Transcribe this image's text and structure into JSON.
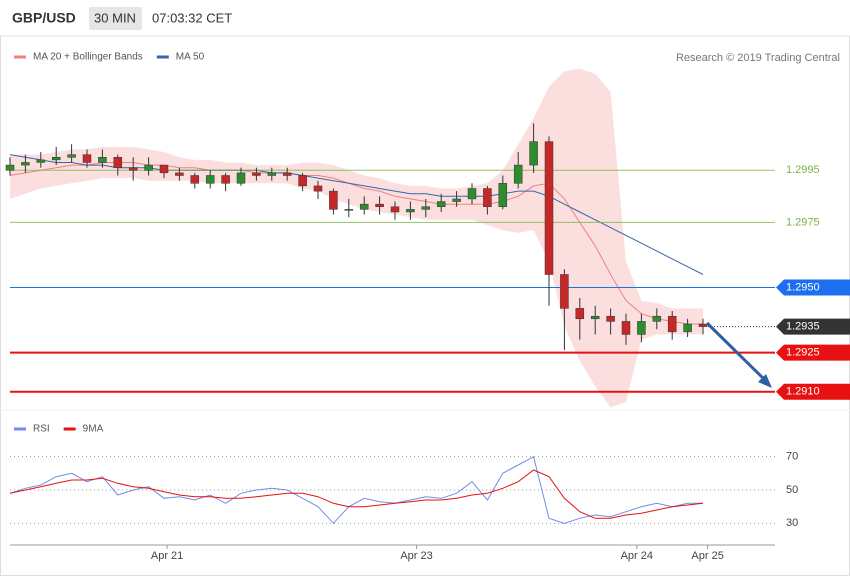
{
  "header": {
    "symbol": "GBP/USD",
    "interval": "30 MIN",
    "time": "07:03:32 CET"
  },
  "copyright": "Research © 2019 Trading Central",
  "chart_data": [
    {
      "type": "candlestick",
      "xlim": [
        0,
        50
      ],
      "ylim": [
        1.2903,
        1.3045
      ],
      "open": [
        1.2995,
        1.2997,
        1.2998,
        1.2999,
        1.3,
        1.3001,
        1.2998,
        1.3,
        1.2996,
        1.2995,
        1.2997,
        1.2994,
        1.2993,
        1.299,
        1.2993,
        1.299,
        1.2994,
        1.2993,
        1.2994,
        1.2993,
        1.2989,
        1.2987,
        1.298,
        1.298,
        1.2982,
        1.2981,
        1.2979,
        1.298,
        1.2981,
        1.2983,
        1.2984,
        1.2988,
        1.2981,
        1.299,
        1.2997,
        1.3006,
        1.2955,
        1.2942,
        1.2938,
        1.2939,
        1.2937,
        1.2932,
        1.2937,
        1.2939,
        1.2933,
        1.2936
      ],
      "high": [
        1.3,
        1.3001,
        1.3002,
        1.3004,
        1.3005,
        1.3003,
        1.3003,
        1.3001,
        1.3,
        1.3,
        1.2996,
        1.2996,
        1.2994,
        1.2995,
        1.2994,
        1.2996,
        1.2996,
        1.2996,
        1.2996,
        1.2994,
        1.2991,
        1.2988,
        1.2984,
        1.2985,
        1.2985,
        1.2983,
        1.2983,
        1.2984,
        1.2986,
        1.2987,
        1.299,
        1.2989,
        1.2993,
        1.3002,
        1.3013,
        1.3008,
        1.2957,
        1.2946,
        1.2943,
        1.2942,
        1.294,
        1.294,
        1.2942,
        1.2941,
        1.2938,
        1.2938
      ],
      "low": [
        1.2993,
        1.2994,
        1.2996,
        1.2997,
        1.2998,
        1.2996,
        1.2996,
        1.2993,
        1.2991,
        1.2993,
        1.2992,
        1.2991,
        1.2988,
        1.2988,
        1.2987,
        1.2989,
        1.2991,
        1.2991,
        1.2991,
        1.2987,
        1.2984,
        1.2978,
        1.2977,
        1.2978,
        1.2978,
        1.2976,
        1.2976,
        1.2977,
        1.2979,
        1.2981,
        1.2982,
        1.2978,
        1.298,
        1.2988,
        1.2994,
        1.2943,
        1.2926,
        1.293,
        1.2932,
        1.2932,
        1.2928,
        1.2929,
        1.2934,
        1.293,
        1.2931,
        1.2932
      ],
      "close": [
        1.2997,
        1.2998,
        1.2999,
        1.3,
        1.3001,
        1.2998,
        1.3,
        1.2996,
        1.2995,
        1.2997,
        1.2994,
        1.2993,
        1.299,
        1.2993,
        1.299,
        1.2994,
        1.2993,
        1.2994,
        1.2993,
        1.2989,
        1.2987,
        1.298,
        1.298,
        1.2982,
        1.2981,
        1.2979,
        1.298,
        1.2981,
        1.2983,
        1.2984,
        1.2988,
        1.2981,
        1.299,
        1.2997,
        1.3006,
        1.2955,
        1.2942,
        1.2938,
        1.2939,
        1.2937,
        1.2932,
        1.2937,
        1.2939,
        1.2933,
        1.2936,
        1.2935
      ],
      "up_color": "#2e8b2e",
      "down_color": "#c62828",
      "band": {
        "name": "MA 20 + Bollinger Bands",
        "color": "#f08080",
        "upper": [
          1.3001,
          1.3001,
          1.3001,
          1.3002,
          1.3003,
          1.3003,
          1.3004,
          1.3004,
          1.3004,
          1.3003,
          1.3002,
          1.3,
          1.2999,
          1.2999,
          1.2998,
          1.2998,
          1.2997,
          1.2997,
          1.2997,
          1.2998,
          1.2998,
          1.2997,
          1.2995,
          1.2993,
          1.2992,
          1.299,
          1.2989,
          1.2989,
          1.2988,
          1.2988,
          1.2989,
          1.299,
          1.2995,
          1.3005,
          1.3015,
          1.3027,
          1.3033,
          1.3034,
          1.3032,
          1.3025,
          1.296,
          1.2945,
          1.2944,
          1.2942,
          1.2942,
          1.2942
        ],
        "middle": [
          1.2993,
          1.2994,
          1.2995,
          1.2996,
          1.2997,
          1.2997,
          1.2998,
          1.2998,
          1.2998,
          1.2997,
          1.2997,
          1.2996,
          1.2996,
          1.2995,
          1.2995,
          1.2995,
          1.2994,
          1.2994,
          1.2994,
          1.2993,
          1.2993,
          1.2992,
          1.299,
          1.2988,
          1.2987,
          1.2985,
          1.2984,
          1.2983,
          1.2982,
          1.2982,
          1.2982,
          1.2982,
          1.2983,
          1.2985,
          1.2989,
          1.299,
          1.2984,
          1.2975,
          1.2966,
          1.2955,
          1.2945,
          1.294,
          1.2938,
          1.2937,
          1.2936,
          1.2936
        ],
        "lower": [
          1.2984,
          1.2986,
          1.2988,
          1.2989,
          1.299,
          1.2991,
          1.2992,
          1.2992,
          1.2992,
          1.2991,
          1.2991,
          1.2991,
          1.2991,
          1.299,
          1.299,
          1.299,
          1.299,
          1.299,
          1.299,
          1.2988,
          1.2987,
          1.2984,
          1.2982,
          1.298,
          1.2979,
          1.2978,
          1.2977,
          1.2976,
          1.2976,
          1.2976,
          1.2976,
          1.2974,
          1.2972,
          1.2971,
          1.2972,
          1.296,
          1.2935,
          1.2922,
          1.2912,
          1.2904,
          1.2906,
          1.293,
          1.2932,
          1.2932,
          1.2932,
          1.2932
        ]
      },
      "series": [
        {
          "name": "MA 50",
          "color": "#3a64a8",
          "values": [
            1.3001,
            1.3,
            1.2999,
            1.2998,
            1.2998,
            1.2997,
            1.2997,
            1.2996,
            1.2996,
            1.2996,
            1.2995,
            1.2995,
            1.2995,
            1.2995,
            1.2995,
            1.2995,
            1.2995,
            1.2994,
            1.2994,
            1.2993,
            1.2992,
            1.2991,
            1.299,
            1.2989,
            1.2988,
            1.2987,
            1.2986,
            1.2986,
            1.2985,
            1.2985,
            1.2985,
            1.2985,
            1.2986,
            1.2987,
            1.2987,
            1.2985,
            1.2982,
            1.2979,
            1.2976,
            1.2973,
            1.297,
            1.2967,
            1.2964,
            1.2961,
            1.2958,
            1.2955
          ]
        }
      ],
      "levels": [
        {
          "value": 1.2995,
          "label": "1.2995",
          "color": "#7cb342",
          "style": "text"
        },
        {
          "value": 1.2975,
          "label": "1.2975",
          "color": "#7cb342",
          "style": "text"
        },
        {
          "value": 1.295,
          "label": "1.2950",
          "color": "#1e6ef0",
          "style": "badge"
        },
        {
          "value": 1.2935,
          "label": "1.2935",
          "color": "#333333",
          "style": "current"
        },
        {
          "value": 1.2925,
          "label": "1.2925",
          "color": "#e81010",
          "style": "badge"
        },
        {
          "value": 1.291,
          "label": "1.2910",
          "color": "#e81010",
          "style": "badge"
        }
      ]
    },
    {
      "type": "line",
      "xlim": [
        0,
        50
      ],
      "ylim": [
        17,
        98
      ],
      "yticks": [
        30,
        50,
        70
      ],
      "grid": true,
      "xticks": [
        {
          "value": 10.2,
          "label": "Apr 21"
        },
        {
          "value": 26.4,
          "label": "Apr 23"
        },
        {
          "value": 40.7,
          "label": "Apr 24"
        },
        {
          "value": 45.3,
          "label": "Apr 25"
        }
      ],
      "series": [
        {
          "name": "RSI",
          "color": "#6f8fe8",
          "values": [
            48,
            51,
            53,
            58,
            60,
            55,
            58,
            47,
            50,
            52,
            45,
            46,
            44,
            47,
            42,
            48,
            50,
            51,
            50,
            45,
            40,
            30,
            40,
            45,
            43,
            42,
            44,
            46,
            45,
            48,
            55,
            44,
            60,
            65,
            70,
            33,
            30,
            33,
            35,
            34,
            37,
            40,
            42,
            40,
            42,
            42
          ]
        },
        {
          "name": "9MA",
          "color": "#e81010",
          "values": [
            48,
            50,
            52,
            54,
            56,
            56,
            57,
            54,
            52,
            51,
            49,
            47,
            46,
            46,
            45,
            45,
            46,
            47,
            48,
            48,
            46,
            42,
            40,
            40,
            41,
            42,
            43,
            44,
            44,
            45,
            47,
            48,
            51,
            55,
            62,
            58,
            45,
            37,
            33,
            33,
            35,
            36,
            38,
            40,
            41,
            42
          ]
        }
      ]
    }
  ]
}
